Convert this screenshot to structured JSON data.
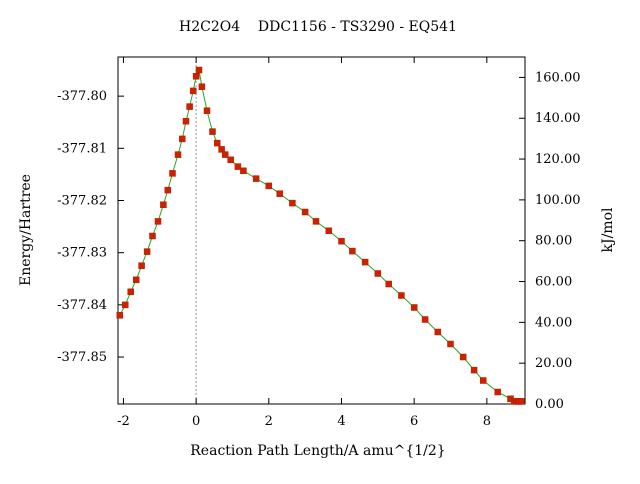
{
  "chart_data": {
    "type": "line",
    "title": "H2C2O4    DDC1156 - TS3290 - EQ541",
    "xlabel": "Reaction Path Length/A amu^{1/2}",
    "ylabel": "Energy/Hartree",
    "y2label": "kJ/mol",
    "xlim": [
      -2.15,
      9.05
    ],
    "ylim": [
      -377.859,
      -377.7925
    ],
    "y2lim": [
      0,
      170
    ],
    "x_ticks": [
      -2,
      0,
      2,
      4,
      6,
      8
    ],
    "x_tick_labels": [
      "-2",
      "0",
      "2",
      "4",
      "6",
      "8"
    ],
    "y_ticks": [
      -377.8,
      -377.81,
      -377.82,
      -377.83,
      -377.84,
      -377.85
    ],
    "y_tick_labels": [
      "-377.80",
      "-377.81",
      "-377.82",
      "-377.83",
      "-377.84",
      "-377.85"
    ],
    "y2_ticks": [
      0,
      20,
      40,
      60,
      80,
      100,
      120,
      140,
      160
    ],
    "y2_tick_labels": [
      "0.00",
      "20.00",
      "40.00",
      "60.00",
      "80.00",
      "100.00",
      "120.00",
      "140.00",
      "160.00"
    ],
    "ts_marker_x": 0,
    "colors": {
      "line": "#22aa22",
      "points": "#cc2200",
      "ts_marker": "#999999",
      "axis": "#000000"
    },
    "grid": false,
    "series": [
      {
        "x": [
          -2.1,
          -1.95,
          -1.8,
          -1.65,
          -1.5,
          -1.35,
          -1.2,
          -1.05,
          -0.9,
          -0.78,
          -0.65,
          -0.5,
          -0.38,
          -0.28,
          -0.18,
          -0.08,
          0.0,
          0.08,
          0.16,
          0.3,
          0.45,
          0.58,
          0.7,
          0.8,
          0.95,
          1.15,
          1.3,
          1.65,
          2.0,
          2.3,
          2.65,
          3.0,
          3.3,
          3.65,
          4.0,
          4.3,
          4.65,
          5.0,
          5.3,
          5.65,
          6.0,
          6.3,
          6.65,
          7.0,
          7.35,
          7.65,
          7.9,
          8.3,
          8.65,
          8.75,
          8.82,
          8.88,
          8.95
        ],
        "y": [
          -377.842,
          -377.84,
          -377.8375,
          -377.8352,
          -377.8325,
          -377.8298,
          -377.8268,
          -377.824,
          -377.8208,
          -377.818,
          -377.8148,
          -377.8112,
          -377.8082,
          -377.8048,
          -377.802,
          -377.799,
          -377.7962,
          -377.795,
          -377.7982,
          -377.8028,
          -377.8068,
          -377.809,
          -377.8102,
          -377.8112,
          -377.8122,
          -377.8135,
          -377.8143,
          -377.8158,
          -377.8172,
          -377.8187,
          -377.8205,
          -377.8222,
          -377.824,
          -377.8258,
          -377.8278,
          -377.8297,
          -377.8318,
          -377.834,
          -377.836,
          -377.8382,
          -377.8405,
          -377.8428,
          -377.8452,
          -377.8475,
          -377.85,
          -377.8525,
          -377.8545,
          -377.8567,
          -377.858,
          -377.8585,
          -377.8585,
          -377.8585,
          -377.8585
        ]
      }
    ]
  }
}
